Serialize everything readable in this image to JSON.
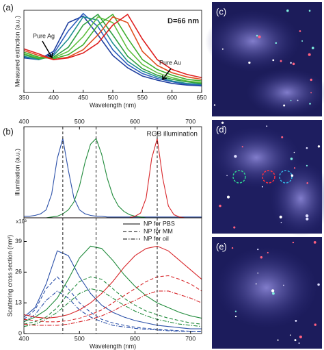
{
  "panels": [
    "(a)",
    "(b)",
    "(c)",
    "(d)",
    "(e)"
  ],
  "chart_data": [
    {
      "type": "line",
      "xlabel": "Wavelength (nm)",
      "ylabel": "Measured extinction (a.u.)",
      "annotations": [
        "D=66 nm",
        "Pure Ag",
        "Pure Au"
      ],
      "x": [
        350,
        375,
        400,
        425,
        450,
        475,
        500,
        525,
        550,
        575,
        600,
        625,
        650
      ],
      "xlim": [
        350,
        650
      ],
      "xticks": [
        350,
        400,
        450,
        500,
        550,
        600,
        650
      ],
      "ylim": [
        0,
        1
      ],
      "yticks": [],
      "xaxis_position": "bottom",
      "series": [
        {
          "color": "#1f3f9f",
          "dash": "solid",
          "values": [
            0.42,
            0.4,
            0.5,
            0.85,
            0.93,
            0.7,
            0.45,
            0.3,
            0.2,
            0.15,
            0.11,
            0.09,
            0.08
          ]
        },
        {
          "color": "#2f5fbf",
          "dash": "solid",
          "values": [
            0.43,
            0.4,
            0.47,
            0.75,
            0.96,
            0.8,
            0.52,
            0.34,
            0.23,
            0.17,
            0.13,
            0.1,
            0.09
          ]
        },
        {
          "color": "#1f8f8f",
          "dash": "solid",
          "values": [
            0.44,
            0.4,
            0.45,
            0.65,
            0.92,
            0.88,
            0.6,
            0.38,
            0.26,
            0.19,
            0.14,
            0.11,
            0.1
          ]
        },
        {
          "color": "#2f9f3f",
          "dash": "solid",
          "values": [
            0.46,
            0.41,
            0.43,
            0.55,
            0.82,
            0.95,
            0.7,
            0.44,
            0.29,
            0.21,
            0.16,
            0.13,
            0.11
          ]
        },
        {
          "color": "#5fbf3f",
          "dash": "solid",
          "values": [
            0.47,
            0.42,
            0.42,
            0.5,
            0.68,
            0.92,
            0.85,
            0.53,
            0.34,
            0.24,
            0.18,
            0.14,
            0.12
          ]
        },
        {
          "color": "#3faf2f",
          "dash": "solid",
          "values": [
            0.49,
            0.43,
            0.41,
            0.46,
            0.58,
            0.82,
            0.95,
            0.66,
            0.4,
            0.28,
            0.21,
            0.16,
            0.14
          ]
        },
        {
          "color": "#df4f1f",
          "dash": "solid",
          "values": [
            0.51,
            0.45,
            0.4,
            0.43,
            0.52,
            0.7,
            0.92,
            0.85,
            0.5,
            0.33,
            0.24,
            0.19,
            0.16
          ]
        },
        {
          "color": "#df1f1f",
          "dash": "solid",
          "values": [
            0.53,
            0.47,
            0.4,
            0.42,
            0.48,
            0.6,
            0.82,
            0.95,
            0.65,
            0.4,
            0.28,
            0.22,
            0.18
          ]
        }
      ]
    },
    {
      "type": "line",
      "ylabel": "Illumination (a.u.)",
      "annotations": [
        "RGB illumination"
      ],
      "x": [
        400,
        410,
        420,
        430,
        440,
        450,
        460,
        470,
        480,
        490,
        500,
        510,
        520,
        530,
        540,
        550,
        560,
        570,
        580,
        590,
        600,
        610,
        620,
        630,
        640,
        650,
        660,
        670,
        680,
        690,
        700,
        710,
        720
      ],
      "xlim": [
        400,
        720
      ],
      "xticks": [
        400,
        500,
        600,
        700
      ],
      "ylim": [
        0,
        1.15
      ],
      "yticks": [],
      "xaxis_position": "top",
      "series": [
        {
          "color": "#2a4fa8",
          "dash": "solid",
          "values": [
            0.02,
            0.02,
            0.03,
            0.05,
            0.1,
            0.3,
            0.75,
            1,
            0.6,
            0.25,
            0.1,
            0.05,
            0.03,
            0.02,
            0.02,
            0.01,
            0.01,
            0.01,
            0.01,
            0.01,
            0.01,
            0.01,
            0.01,
            0.01,
            0.01,
            0.01,
            0.01,
            0.01,
            0.01,
            0.01,
            0.01,
            0.01,
            0.01
          ]
        },
        {
          "color": "#1f8a3a",
          "dash": "solid",
          "values": [
            0,
            0,
            0,
            0,
            0,
            0.01,
            0.02,
            0.05,
            0.1,
            0.2,
            0.4,
            0.7,
            0.93,
            1,
            0.8,
            0.5,
            0.28,
            0.15,
            0.08,
            0.04,
            0.02,
            0.01,
            0,
            0,
            0,
            0,
            0,
            0,
            0,
            0,
            0,
            0,
            0
          ]
        },
        {
          "color": "#d8262a",
          "dash": "solid",
          "values": [
            0,
            0,
            0,
            0,
            0,
            0,
            0,
            0,
            0,
            0,
            0,
            0,
            0,
            0,
            0,
            0,
            0,
            0,
            0,
            0,
            0.02,
            0.06,
            0.25,
            0.75,
            1,
            0.5,
            0.15,
            0.04,
            0.01,
            0,
            0,
            0,
            0
          ]
        }
      ]
    },
    {
      "type": "line",
      "xlabel": "Wavelength (nm)",
      "ylabel": "Scattering cross section (nm²)",
      "y_multiplier": "x10³",
      "legend": [
        {
          "label": "NP for PBS",
          "dash": "solid"
        },
        {
          "label": "NP for MM",
          "dash": "dashed"
        },
        {
          "label": "NP for oil",
          "dash": "dashdot"
        }
      ],
      "vlines": [
        470,
        530,
        640
      ],
      "x": [
        400,
        420,
        440,
        460,
        480,
        500,
        520,
        540,
        560,
        580,
        600,
        620,
        640,
        660,
        680,
        700,
        720
      ],
      "xlim": [
        400,
        720
      ],
      "xticks": [
        400,
        500,
        600,
        700
      ],
      "ylim": [
        0,
        49
      ],
      "yticks": [
        0,
        13,
        26,
        39
      ],
      "xaxis_position": "bottom",
      "series": [
        {
          "color": "#2a4fa8",
          "dash": "solid",
          "values": [
            7,
            11,
            21,
            35,
            33,
            24,
            17,
            12,
            9,
            7,
            5.5,
            4.5,
            3.5,
            3,
            2.5,
            2,
            2
          ]
        },
        {
          "color": "#2a4fa8",
          "dash": "dashed",
          "values": [
            6,
            10,
            19,
            24,
            19,
            13,
            9,
            6,
            4.5,
            3.5,
            2.7,
            2.2,
            1.8,
            1.5,
            1.2,
            1,
            1
          ]
        },
        {
          "color": "#2a4fa8",
          "dash": "dashdot",
          "values": [
            5,
            8,
            14,
            18,
            15,
            10,
            7,
            5,
            3.5,
            2.8,
            2.2,
            1.8,
            1.5,
            1.2,
            1,
            0.9,
            0.8
          ]
        },
        {
          "color": "#1f8a3a",
          "dash": "solid",
          "values": [
            5,
            7,
            10,
            15,
            23,
            32,
            37,
            36,
            31,
            25,
            20,
            16,
            13,
            11,
            9,
            7.5,
            6.5
          ]
        },
        {
          "color": "#1f8a3a",
          "dash": "dashed",
          "values": [
            4,
            5,
            7,
            11,
            17,
            22,
            24,
            23,
            19,
            15,
            12,
            9.5,
            8,
            6.5,
            5.5,
            4.5,
            4
          ]
        },
        {
          "color": "#1f8a3a",
          "dash": "dashdot",
          "values": [
            3,
            4,
            6,
            9,
            13,
            17,
            19,
            18,
            15,
            12,
            9.5,
            7.5,
            6,
            5,
            4,
            3.5,
            3
          ]
        },
        {
          "color": "#d8262a",
          "dash": "solid",
          "values": [
            8,
            7,
            6.5,
            7,
            8,
            10,
            13,
            17,
            22,
            28,
            33,
            36,
            37,
            35,
            31,
            27,
            23
          ]
        },
        {
          "color": "#d8262a",
          "dash": "dashed",
          "values": [
            6,
            5.5,
            5,
            5,
            5.5,
            6.5,
            8,
            10,
            13,
            16,
            19,
            22,
            24,
            24.5,
            23,
            21,
            18
          ]
        },
        {
          "color": "#d8262a",
          "dash": "dashdot",
          "values": [
            4,
            3.5,
            3.5,
            3.5,
            4,
            5,
            6,
            7.5,
            9.5,
            12,
            14,
            16.5,
            18,
            18,
            16.5,
            15,
            13
          ]
        }
      ]
    }
  ]
}
